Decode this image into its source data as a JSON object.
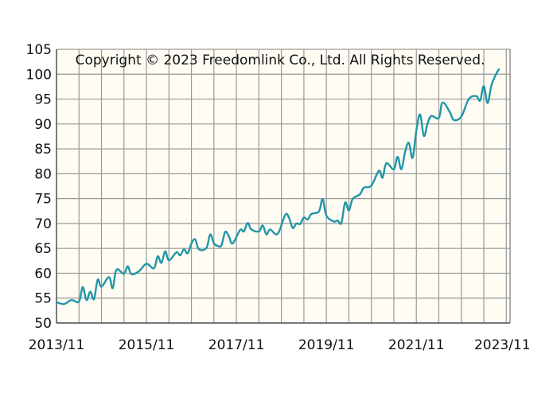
{
  "chart_data": {
    "type": "line",
    "title": "",
    "xlabel": "",
    "ylabel": "",
    "annotation": "Copyright © 2023 Freedomlink Co., Ltd. All Rights Reserved.",
    "ylim": [
      50,
      105
    ],
    "y_ticks": [
      50,
      55,
      60,
      65,
      70,
      75,
      80,
      85,
      90,
      95,
      100,
      105
    ],
    "xlim": [
      "2013-11",
      "2023-12"
    ],
    "x_ticks": [
      "2013/11",
      "2015/11",
      "2017/11",
      "2019/11",
      "2021/11",
      "2023/11"
    ],
    "grid": true,
    "colors": {
      "line": "#2196a8",
      "plot_bg": "#fffcf3",
      "grid": "#999999"
    },
    "series": [
      {
        "points": [
          [
            "2013-11",
            54.2
          ],
          [
            "2014-01",
            53.8
          ],
          [
            "2014-03",
            54.6
          ],
          [
            "2014-05",
            54.3
          ],
          [
            "2014-06",
            57.2
          ],
          [
            "2014-07",
            54.6
          ],
          [
            "2014-08",
            56.3
          ],
          [
            "2014-09",
            54.8
          ],
          [
            "2014-10",
            58.7
          ],
          [
            "2014-11",
            57.3
          ],
          [
            "2015-01",
            59.2
          ],
          [
            "2015-02",
            57.0
          ],
          [
            "2015-03",
            60.7
          ],
          [
            "2015-05",
            59.9
          ],
          [
            "2015-06",
            61.4
          ],
          [
            "2015-07",
            59.8
          ],
          [
            "2015-09",
            60.4
          ],
          [
            "2015-11",
            61.9
          ],
          [
            "2016-01",
            61.0
          ],
          [
            "2016-02",
            63.4
          ],
          [
            "2016-03",
            62.1
          ],
          [
            "2016-04",
            64.4
          ],
          [
            "2016-05",
            62.6
          ],
          [
            "2016-07",
            64.2
          ],
          [
            "2016-08",
            63.6
          ],
          [
            "2016-09",
            64.8
          ],
          [
            "2016-10",
            64.0
          ],
          [
            "2016-11",
            66.0
          ],
          [
            "2016-12",
            66.8
          ],
          [
            "2017-01",
            64.8
          ],
          [
            "2017-03",
            65.1
          ],
          [
            "2017-04",
            67.8
          ],
          [
            "2017-05",
            66.0
          ],
          [
            "2017-06",
            65.5
          ],
          [
            "2017-07",
            65.6
          ],
          [
            "2017-08",
            68.3
          ],
          [
            "2017-09",
            67.4
          ],
          [
            "2017-10",
            66.0
          ],
          [
            "2017-12",
            68.7
          ],
          [
            "2018-01",
            68.4
          ],
          [
            "2018-02",
            70.1
          ],
          [
            "2018-03",
            68.8
          ],
          [
            "2018-05",
            68.4
          ],
          [
            "2018-06",
            69.6
          ],
          [
            "2018-07",
            67.8
          ],
          [
            "2018-08",
            68.8
          ],
          [
            "2018-10",
            67.9
          ],
          [
            "2018-12",
            71.7
          ],
          [
            "2019-01",
            71.2
          ],
          [
            "2019-02",
            69.1
          ],
          [
            "2019-03",
            70.0
          ],
          [
            "2019-04",
            69.9
          ],
          [
            "2019-05",
            71.2
          ],
          [
            "2019-06",
            70.8
          ],
          [
            "2019-07",
            71.9
          ],
          [
            "2019-09",
            72.4
          ],
          [
            "2019-10",
            74.9
          ],
          [
            "2019-11",
            71.6
          ],
          [
            "2020-01",
            70.4
          ],
          [
            "2020-02",
            70.6
          ],
          [
            "2020-03",
            70.1
          ],
          [
            "2020-04",
            74.2
          ],
          [
            "2020-05",
            72.6
          ],
          [
            "2020-06",
            74.9
          ],
          [
            "2020-08",
            75.9
          ],
          [
            "2020-09",
            77.2
          ],
          [
            "2020-11",
            77.6
          ],
          [
            "2021-01",
            80.6
          ],
          [
            "2021-02",
            79.2
          ],
          [
            "2021-03",
            82.1
          ],
          [
            "2021-05",
            80.9
          ],
          [
            "2021-06",
            83.4
          ],
          [
            "2021-07",
            80.9
          ],
          [
            "2021-08",
            84.4
          ],
          [
            "2021-09",
            86.2
          ],
          [
            "2021-10",
            83.2
          ],
          [
            "2021-11",
            88.7
          ],
          [
            "2021-12",
            91.9
          ],
          [
            "2022-01",
            87.6
          ],
          [
            "2022-02",
            90.1
          ],
          [
            "2022-03",
            91.6
          ],
          [
            "2022-05",
            91.2
          ],
          [
            "2022-06",
            94.3
          ],
          [
            "2022-08",
            92.3
          ],
          [
            "2022-09",
            90.8
          ],
          [
            "2022-11",
            91.5
          ],
          [
            "2023-01",
            95.0
          ],
          [
            "2023-03",
            95.6
          ],
          [
            "2023-04",
            94.7
          ],
          [
            "2023-05",
            97.6
          ],
          [
            "2023-06",
            94.2
          ],
          [
            "2023-07",
            97.7
          ],
          [
            "2023-08",
            99.6
          ],
          [
            "2023-09",
            101.0
          ]
        ]
      }
    ]
  }
}
